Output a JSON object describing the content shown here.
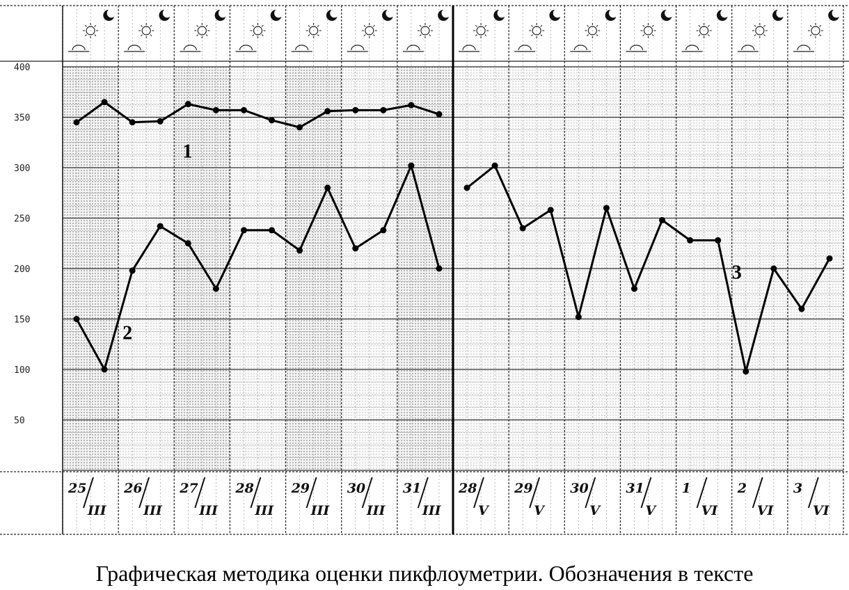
{
  "chart_data": {
    "type": "line",
    "ylim": [
      0,
      400
    ],
    "y_ticks": [
      "400",
      "350",
      "300",
      "250",
      "200",
      "150",
      "100",
      "50"
    ],
    "date_labels": [
      {
        "day": "25",
        "month": "III"
      },
      {
        "day": "26",
        "month": "III"
      },
      {
        "day": "27",
        "month": "III"
      },
      {
        "day": "28",
        "month": "III"
      },
      {
        "day": "29",
        "month": "III"
      },
      {
        "day": "30",
        "month": "III"
      },
      {
        "day": "31",
        "month": "III"
      },
      {
        "day": "28",
        "month": "V"
      },
      {
        "day": "29",
        "month": "V"
      },
      {
        "day": "30",
        "month": "V"
      },
      {
        "day": "31",
        "month": "V"
      },
      {
        "day": "1",
        "month": "VI"
      },
      {
        "day": "2",
        "month": "VI"
      },
      {
        "day": "3",
        "month": "VI"
      }
    ],
    "series": [
      {
        "label": "1",
        "x_start": 0,
        "values": [
          345,
          365,
          345,
          346,
          363,
          357,
          357,
          347,
          340,
          356,
          357,
          357,
          362,
          353
        ]
      },
      {
        "label": "2",
        "x_start": 0,
        "values": [
          150,
          100,
          198,
          242,
          225,
          180,
          238,
          238,
          218,
          280,
          220,
          238,
          302,
          200
        ]
      },
      {
        "label": "3",
        "x_start": 14,
        "values": [
          280,
          302,
          240,
          258,
          152,
          260,
          180,
          248,
          228,
          228,
          98,
          200,
          160,
          210
        ]
      }
    ]
  },
  "caption": "Графическая методика оценки пикфлоуметрии. Обозначения в тексте"
}
